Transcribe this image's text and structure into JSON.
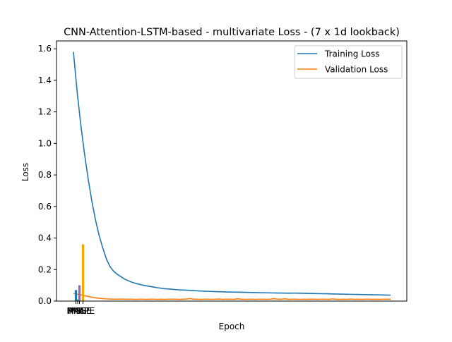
{
  "chart_data": {
    "type": "line",
    "title": "CNN-Attention-LSTM-based - multivariate Loss - (7 x 1d lookback)",
    "xlabel": "Epoch",
    "ylabel": "Loss",
    "ylim": [
      0,
      1.65
    ],
    "y_ticks": [
      "0.0",
      "0.2",
      "0.4",
      "0.6",
      "0.8",
      "1.0",
      "1.2",
      "1.4",
      "1.6"
    ],
    "legend_position": "top-right",
    "grid": false,
    "series": [
      {
        "name": "Training Loss",
        "color": "#1f77b4",
        "values": [
          1.58,
          1.33,
          1.12,
          0.94,
          0.78,
          0.64,
          0.52,
          0.42,
          0.34,
          0.27,
          0.22,
          0.19,
          0.17,
          0.155,
          0.14,
          0.13,
          0.12,
          0.113,
          0.107,
          0.101,
          0.097,
          0.093,
          0.089,
          0.085,
          0.082,
          0.079,
          0.077,
          0.075,
          0.073,
          0.071,
          0.07,
          0.069,
          0.068,
          0.067,
          0.065,
          0.064,
          0.063,
          0.062,
          0.061,
          0.06,
          0.0595,
          0.059,
          0.058,
          0.0575,
          0.057,
          0.0565,
          0.056,
          0.0555,
          0.055,
          0.0545,
          0.054,
          0.0535,
          0.053,
          0.0525,
          0.052,
          0.0515,
          0.051,
          0.051,
          0.0505,
          0.05,
          0.0505,
          0.0505,
          0.05,
          0.0495,
          0.049,
          0.0485,
          0.048,
          0.0475,
          0.047,
          0.0465,
          0.046,
          0.0455,
          0.045,
          0.0445,
          0.044,
          0.0435,
          0.043,
          0.0425,
          0.042,
          0.0415,
          0.041,
          0.0405,
          0.04,
          0.04,
          0.0395,
          0.039,
          0.0385,
          0.038
        ]
      },
      {
        "name": "Validation Loss",
        "color": "#ff7f0e",
        "values": [
          0.048,
          0.044,
          0.04,
          0.035,
          0.03,
          0.025,
          0.021,
          0.018,
          0.016,
          0.014,
          0.013,
          0.012,
          0.012,
          0.013,
          0.012,
          0.012,
          0.012,
          0.011,
          0.012,
          0.012,
          0.011,
          0.012,
          0.012,
          0.011,
          0.012,
          0.011,
          0.012,
          0.012,
          0.012,
          0.011,
          0.012,
          0.013,
          0.016,
          0.012,
          0.012,
          0.011,
          0.012,
          0.012,
          0.011,
          0.012,
          0.013,
          0.011,
          0.012,
          0.012,
          0.011,
          0.015,
          0.012,
          0.011,
          0.012,
          0.012,
          0.011,
          0.012,
          0.012,
          0.011,
          0.012,
          0.016,
          0.012,
          0.012,
          0.015,
          0.011,
          0.012,
          0.012,
          0.011,
          0.012,
          0.011,
          0.012,
          0.012,
          0.011,
          0.012,
          0.012,
          0.011,
          0.014,
          0.012,
          0.011,
          0.012,
          0.011,
          0.013,
          0.011,
          0.012,
          0.011,
          0.012,
          0.012,
          0.011,
          0.012,
          0.011,
          0.012,
          0.012,
          0.012
        ]
      }
    ],
    "overlay_bars": {
      "categories": [
        "MAE",
        "MSE",
        "RMSE",
        "MAPE"
      ],
      "values": [
        0.07,
        0.01,
        0.1,
        0.36
      ],
      "colors": [
        "#1f77b4",
        "#ff7f0e",
        "#2ca02c",
        "#d62728",
        "#9467bd",
        "#ffa500"
      ]
    }
  }
}
